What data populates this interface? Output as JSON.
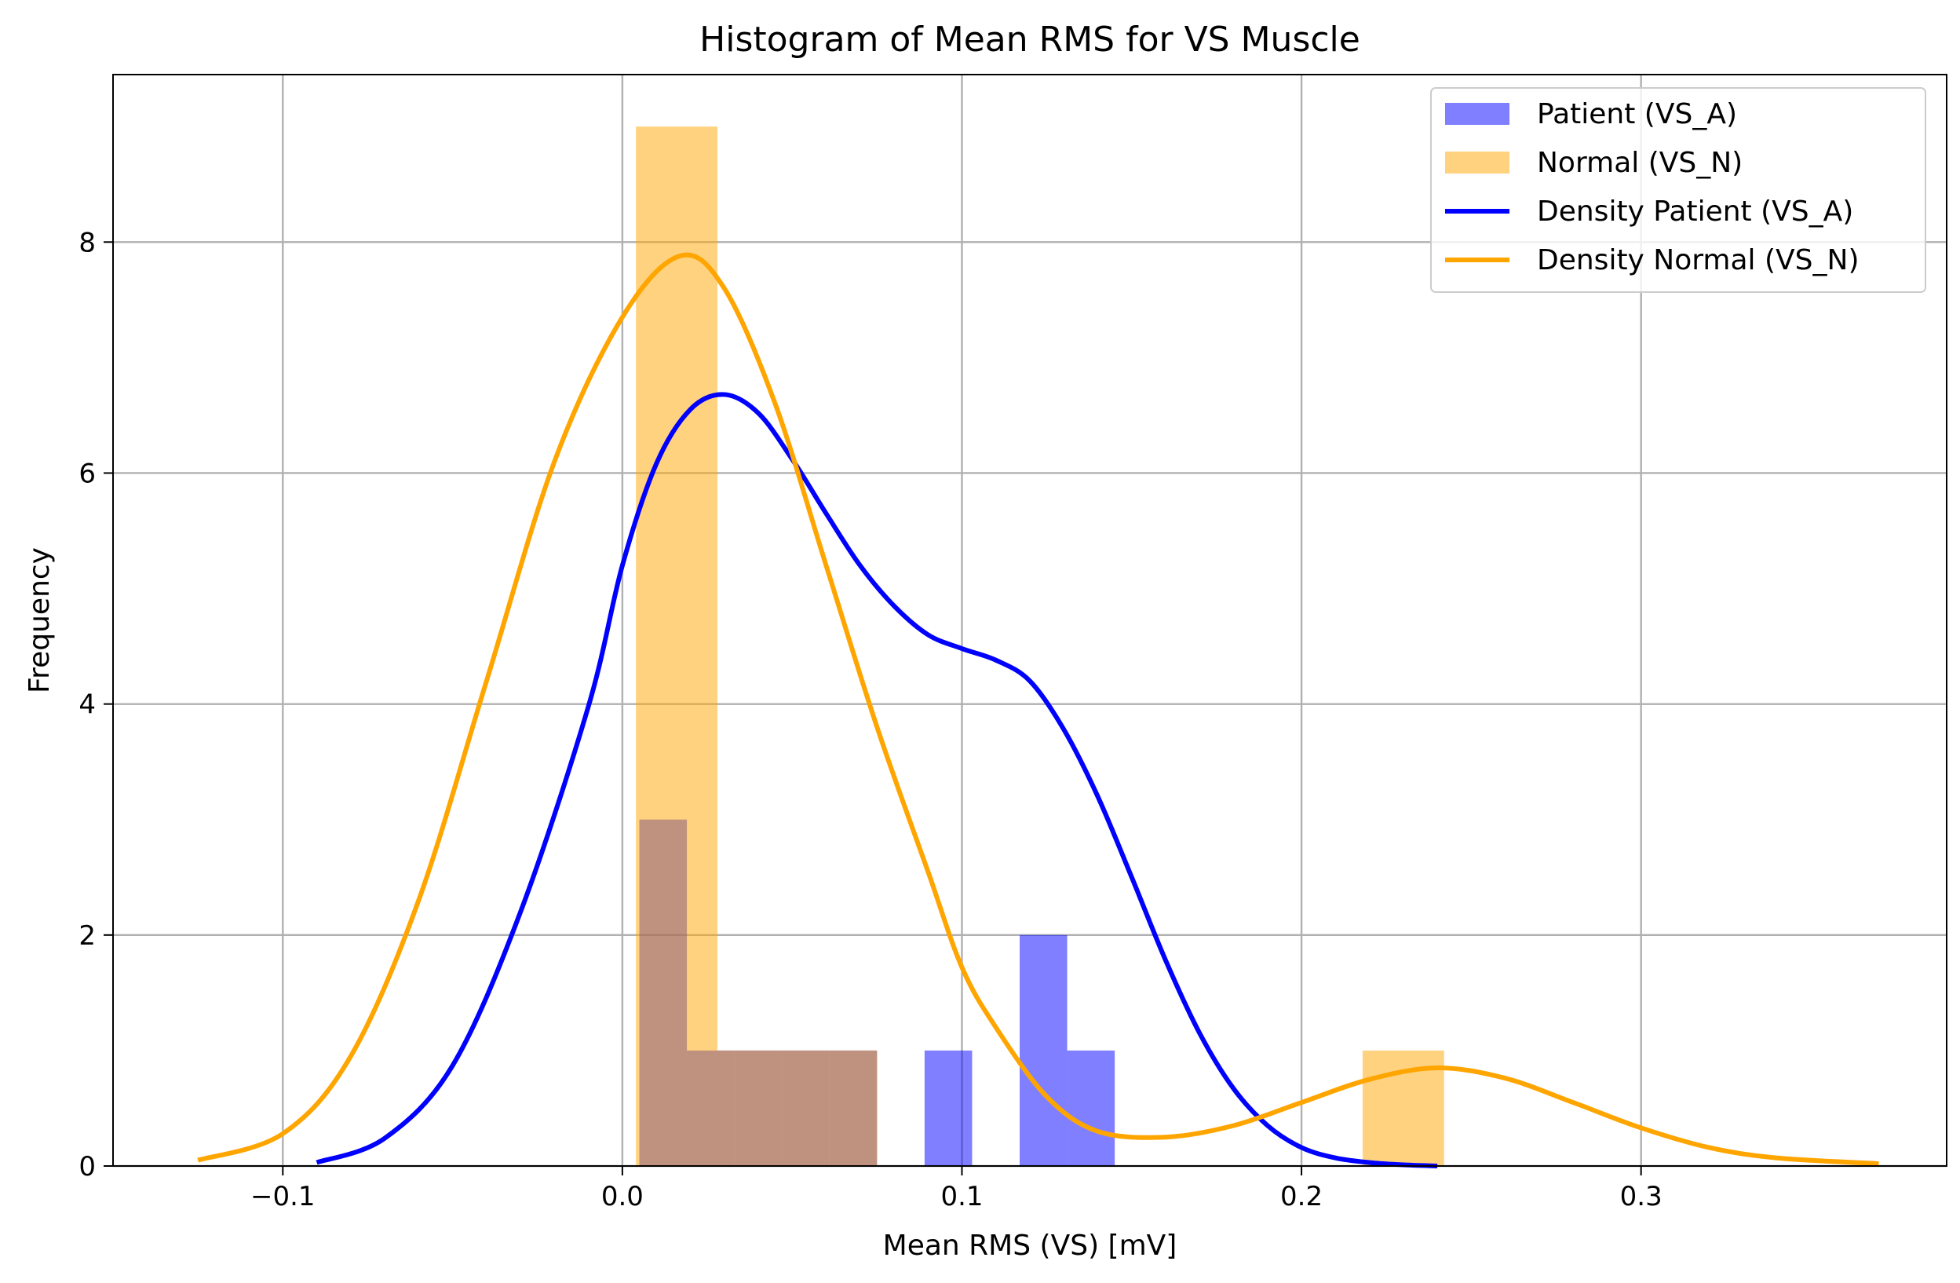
{
  "chart_data": {
    "type": "bar",
    "title": "Histogram of Mean RMS for VS Muscle",
    "xlabel": "Mean RMS (VS) [mV]",
    "ylabel": "Frequency",
    "xlim": [
      -0.15,
      0.39
    ],
    "ylim": [
      0,
      9.45
    ],
    "xticks": [
      -0.1,
      0.0,
      0.1,
      0.2,
      0.3
    ],
    "xtick_labels": [
      "−0.1",
      "0.0",
      "0.1",
      "0.2",
      "0.3"
    ],
    "yticks": [
      0,
      2,
      4,
      6,
      8
    ],
    "ytick_labels": [
      "0",
      "2",
      "4",
      "6",
      "8"
    ],
    "grid": true,
    "legend_position": "top-right",
    "histograms": [
      {
        "name": "Patient (VS_A)",
        "color": "#0000ff",
        "opacity": 0.5,
        "bins": [
          {
            "x0": 0.005,
            "x1": 0.019,
            "count": 3
          },
          {
            "x0": 0.019,
            "x1": 0.033,
            "count": 1
          },
          {
            "x0": 0.033,
            "x1": 0.047,
            "count": 1
          },
          {
            "x0": 0.047,
            "x1": 0.061,
            "count": 1
          },
          {
            "x0": 0.061,
            "x1": 0.075,
            "count": 1
          },
          {
            "x0": 0.089,
            "x1": 0.103,
            "count": 1
          },
          {
            "x0": 0.117,
            "x1": 0.131,
            "count": 2
          },
          {
            "x0": 0.131,
            "x1": 0.145,
            "count": 1
          }
        ]
      },
      {
        "name": "Normal (VS_N)",
        "color": "#ffa500",
        "opacity": 0.5,
        "bins": [
          {
            "x0": 0.004,
            "x1": 0.028,
            "count": 9
          },
          {
            "x0": 0.028,
            "x1": 0.051,
            "count": 1
          },
          {
            "x0": 0.051,
            "x1": 0.075,
            "count": 1
          },
          {
            "x0": 0.218,
            "x1": 0.242,
            "count": 1
          }
        ]
      }
    ],
    "density_curves": [
      {
        "name": "Density Patient (VS_A)",
        "color": "#0000ff",
        "x": [
          -0.09,
          -0.07,
          -0.05,
          -0.03,
          -0.01,
          0.0,
          0.01,
          0.02,
          0.03,
          0.04,
          0.05,
          0.06,
          0.07,
          0.08,
          0.09,
          0.1,
          0.11,
          0.12,
          0.13,
          0.14,
          0.15,
          0.16,
          0.17,
          0.18,
          0.19,
          0.2,
          0.21,
          0.22,
          0.23,
          0.24
        ],
        "y": [
          0.03,
          0.24,
          0.87,
          2.2,
          3.98,
          5.2,
          6.08,
          6.55,
          6.68,
          6.52,
          6.12,
          5.65,
          5.2,
          4.85,
          4.6,
          4.48,
          4.38,
          4.2,
          3.78,
          3.2,
          2.5,
          1.78,
          1.15,
          0.67,
          0.35,
          0.16,
          0.07,
          0.03,
          0.01,
          0.0
        ]
      },
      {
        "name": "Density Normal (VS_N)",
        "color": "#ffa500",
        "x": [
          -0.125,
          -0.1,
          -0.08,
          -0.06,
          -0.04,
          -0.02,
          0.0,
          0.017,
          0.03,
          0.045,
          0.06,
          0.075,
          0.09,
          0.1,
          0.11,
          0.125,
          0.14,
          0.16,
          0.18,
          0.2,
          0.22,
          0.24,
          0.26,
          0.28,
          0.3,
          0.32,
          0.34,
          0.37
        ],
        "y": [
          0.05,
          0.28,
          0.95,
          2.3,
          4.2,
          6.1,
          7.35,
          7.88,
          7.6,
          6.6,
          5.2,
          3.8,
          2.55,
          1.72,
          1.2,
          0.6,
          0.3,
          0.25,
          0.35,
          0.55,
          0.75,
          0.85,
          0.76,
          0.55,
          0.33,
          0.16,
          0.07,
          0.02
        ]
      }
    ],
    "legend": [
      {
        "label": "Patient (VS_A)",
        "kind": "patch",
        "color": "#0000ff",
        "opacity": 0.5
      },
      {
        "label": "Normal (VS_N)",
        "kind": "patch",
        "color": "#ffa500",
        "opacity": 0.5
      },
      {
        "label": "Density Patient (VS_A)",
        "kind": "line",
        "color": "#0000ff"
      },
      {
        "label": "Density Normal (VS_N)",
        "kind": "line",
        "color": "#ffa500"
      }
    ]
  }
}
